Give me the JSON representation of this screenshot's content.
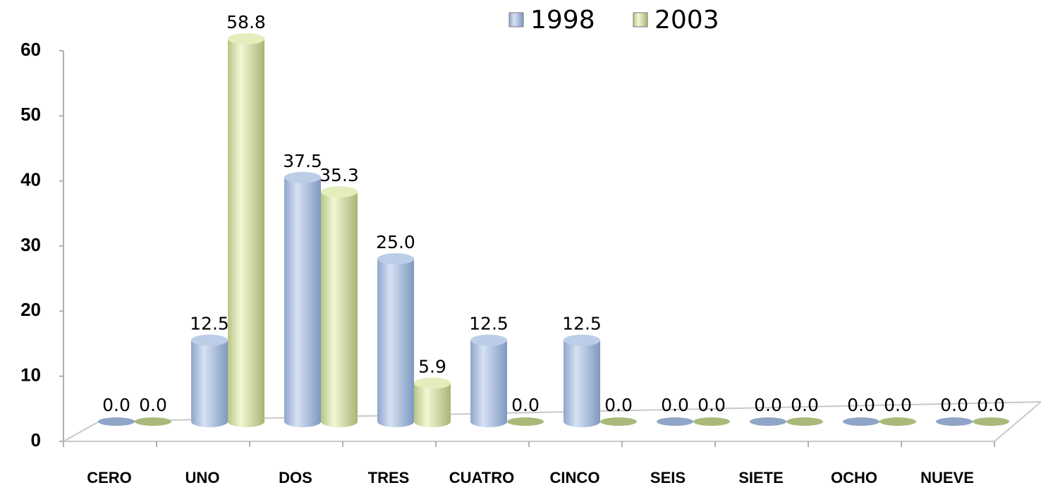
{
  "chart_data": {
    "type": "bar3d",
    "categories": [
      "CERO",
      "UNO",
      "DOS",
      "TRES",
      "CUATRO",
      "CINCO",
      "SEIS",
      "SIETE",
      "OCHO",
      "NUEVE"
    ],
    "series": [
      {
        "name": "1998",
        "color": "#9bb3d8",
        "values": [
          0,
          12.5,
          37.5,
          25,
          12.5,
          12.5,
          0,
          0,
          0,
          0
        ],
        "value_labels": [
          "0.0",
          "12.5",
          "37.5",
          "25.0",
          "12.5",
          "12.5",
          "0.0",
          "0.0",
          "0.0",
          "0.0"
        ]
      },
      {
        "name": "2003",
        "color": "#d4e0a4",
        "values": [
          0,
          58.8,
          35.3,
          5.9,
          0,
          0,
          0,
          0,
          0,
          0
        ],
        "value_labels": [
          "0.0",
          "58.8",
          "35.3",
          "5.9",
          "0.0",
          "0.0",
          "0.0",
          "0.0",
          "0.0",
          "0.0"
        ]
      }
    ],
    "ylim": [
      0,
      60
    ],
    "yticks": [
      0,
      10,
      20,
      30,
      40,
      50,
      60
    ],
    "grid": false,
    "legend": "top"
  }
}
